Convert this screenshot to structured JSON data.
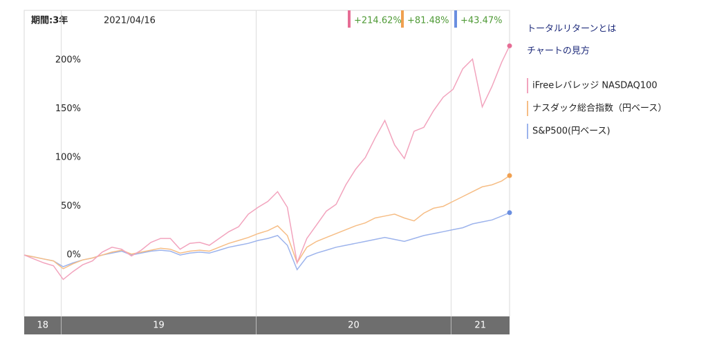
{
  "chart_data": {
    "type": "line",
    "period_label": "期間:3年",
    "date": "2021/04/16",
    "links": [
      "トータルリターンとは",
      "チャートの見方"
    ],
    "x": [
      2018.81,
      2018.86,
      2018.91,
      2018.96,
      2019.01,
      2019.06,
      2019.11,
      2019.16,
      2019.21,
      2019.26,
      2019.31,
      2019.36,
      2019.41,
      2019.46,
      2019.51,
      2019.56,
      2019.61,
      2019.66,
      2019.71,
      2019.76,
      2019.81,
      2019.86,
      2019.91,
      2019.96,
      2020.01,
      2020.06,
      2020.11,
      2020.16,
      2020.21,
      2020.26,
      2020.31,
      2020.36,
      2020.41,
      2020.46,
      2020.51,
      2020.56,
      2020.61,
      2020.66,
      2020.71,
      2020.76,
      2020.81,
      2020.86,
      2020.91,
      2020.96,
      2021.01,
      2021.06,
      2021.11,
      2021.16,
      2021.21,
      2021.26,
      2021.3
    ],
    "xlim": [
      2018.81,
      2021.3
    ],
    "xticks": [
      {
        "value": 2018,
        "label": "18"
      },
      {
        "value": 2019,
        "label": "19"
      },
      {
        "value": 2020,
        "label": "20"
      },
      {
        "value": 2021,
        "label": "21"
      }
    ],
    "ylim": [
      -63,
      251
    ],
    "yticks": [
      {
        "value": 0,
        "label": "0%"
      },
      {
        "value": 50,
        "label": "50%"
      },
      {
        "value": 100,
        "label": "100%"
      },
      {
        "value": 150,
        "label": "150%"
      },
      {
        "value": 200,
        "label": "200%"
      }
    ],
    "grid": false,
    "series": [
      {
        "name": "iFreeレバレッジ NASDAQ100",
        "color": "#f2a3bd",
        "marker_color": "#e66d95",
        "end_label": "+214.62%",
        "values": [
          0,
          -4,
          -8,
          -11,
          -25,
          -17,
          -10,
          -6,
          3,
          8,
          6,
          -1,
          5,
          13,
          17,
          17,
          6,
          12,
          13,
          10,
          17,
          24,
          29,
          42,
          49,
          55,
          65,
          49,
          -8,
          17,
          31,
          45,
          52,
          72,
          88,
          100,
          120,
          138,
          113,
          99,
          127,
          131,
          148,
          162,
          170,
          191,
          201,
          152,
          173,
          198,
          214.62
        ]
      },
      {
        "name": "ナスダック総合指数（円ベース）",
        "color": "#f6bd85",
        "marker_color": "#f0a050",
        "end_label": "+81.48%",
        "values": [
          0,
          -2,
          -4,
          -6,
          -14,
          -9,
          -5,
          -3,
          0,
          3,
          5,
          1,
          3,
          5,
          7,
          6,
          2,
          4,
          5,
          4,
          8,
          12,
          15,
          18,
          22,
          25,
          30,
          20,
          -8,
          8,
          14,
          18,
          22,
          26,
          30,
          33,
          38,
          40,
          42,
          38,
          35,
          43,
          48,
          50,
          55,
          60,
          65,
          70,
          72,
          76,
          81.48
        ]
      },
      {
        "name": "S&P500(円ベース)",
        "color": "#9cb3ec",
        "marker_color": "#6a8ee0",
        "end_label": "+43.47%",
        "values": [
          0,
          -2,
          -4,
          -6,
          -12,
          -8,
          -5,
          -3,
          0,
          2,
          4,
          0,
          2,
          4,
          5,
          4,
          0,
          2,
          3,
          2,
          5,
          8,
          10,
          12,
          15,
          17,
          20,
          10,
          -15,
          -2,
          2,
          5,
          8,
          10,
          12,
          14,
          16,
          18,
          16,
          14,
          17,
          20,
          22,
          24,
          26,
          28,
          32,
          34,
          36,
          40,
          43.47
        ]
      }
    ]
  }
}
